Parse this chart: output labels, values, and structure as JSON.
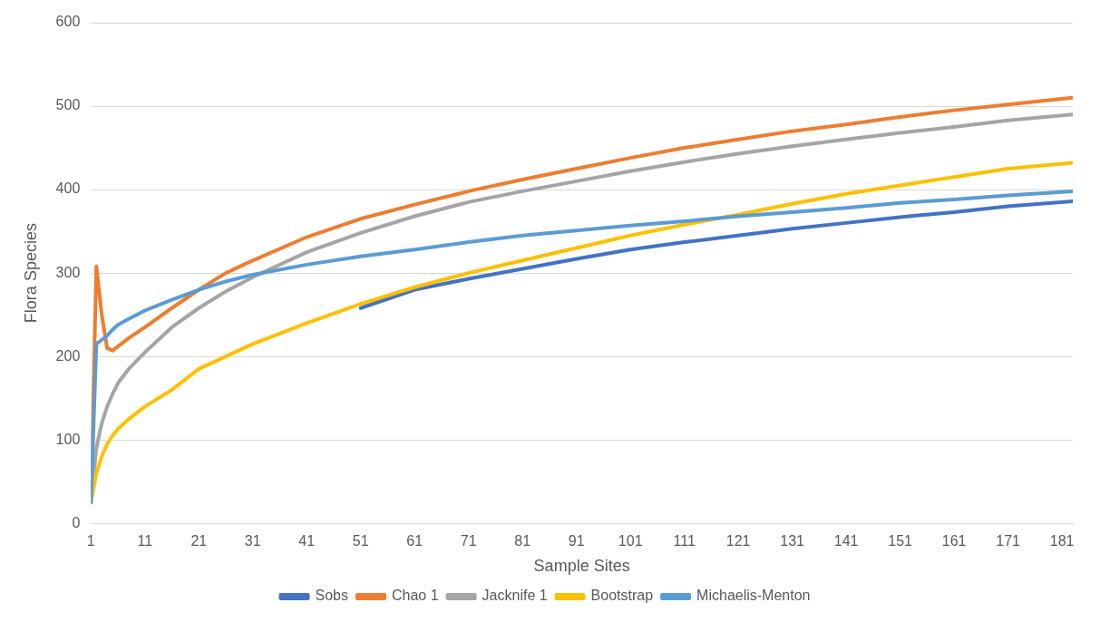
{
  "chart_data": {
    "type": "line",
    "xlabel": "Sample Sites",
    "ylabel": "Flora Species",
    "x": [
      1,
      2,
      3,
      4,
      5,
      6,
      8,
      11,
      16,
      21,
      26,
      31,
      41,
      51,
      61,
      71,
      81,
      91,
      101,
      111,
      121,
      131,
      141,
      151,
      161,
      171,
      183
    ],
    "xlim": [
      1,
      183
    ],
    "xticks": [
      1,
      11,
      21,
      31,
      41,
      51,
      61,
      71,
      81,
      91,
      101,
      111,
      121,
      131,
      141,
      151,
      161,
      171,
      181
    ],
    "ylim": [
      0,
      600
    ],
    "yticks": [
      0,
      100,
      200,
      300,
      400,
      500,
      600
    ],
    "grid": "y",
    "legend": "bottom",
    "marker": "none",
    "line_style": "solid",
    "series": [
      {
        "name": "Sobs",
        "color": "#4472c4",
        "values": [
          null,
          null,
          null,
          null,
          null,
          null,
          null,
          null,
          null,
          null,
          null,
          null,
          null,
          258,
          280,
          293,
          305,
          317,
          328,
          337,
          345,
          353,
          360,
          367,
          373,
          380,
          386
        ]
      },
      {
        "name": "Chao 1",
        "color": "#ed7d31",
        "values": [
          25,
          308,
          250,
          210,
          207,
          212,
          222,
          235,
          258,
          280,
          300,
          315,
          343,
          365,
          382,
          398,
          412,
          425,
          438,
          450,
          460,
          470,
          478,
          487,
          495,
          502,
          510
        ]
      },
      {
        "name": "Jacknife 1",
        "color": "#a5a5a5",
        "values": [
          25,
          90,
          120,
          140,
          155,
          168,
          185,
          205,
          235,
          258,
          278,
          295,
          325,
          348,
          368,
          385,
          398,
          410,
          422,
          433,
          443,
          452,
          460,
          468,
          475,
          483,
          490
        ]
      },
      {
        "name": "Bootstrap",
        "color": "#ffc000",
        "values": [
          25,
          60,
          80,
          95,
          105,
          113,
          125,
          140,
          160,
          185,
          200,
          215,
          240,
          263,
          283,
          300,
          315,
          330,
          345,
          358,
          370,
          383,
          395,
          405,
          415,
          425,
          432
        ]
      },
      {
        "name": "Michaelis-Menton",
        "color": "#5b9bd5",
        "values": [
          25,
          215,
          220,
          225,
          232,
          238,
          245,
          255,
          268,
          280,
          290,
          298,
          310,
          320,
          328,
          337,
          345,
          351,
          357,
          362,
          368,
          373,
          378,
          384,
          388,
          393,
          398
        ]
      }
    ]
  }
}
